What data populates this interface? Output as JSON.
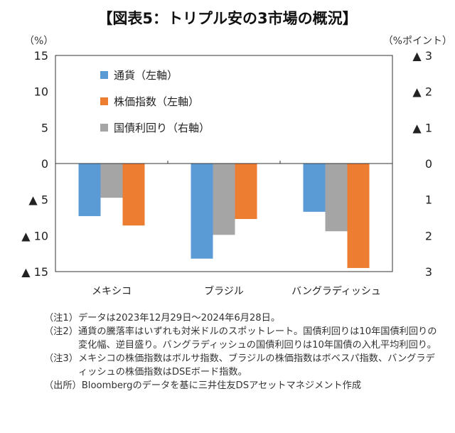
{
  "chart_data": {
    "type": "bar",
    "title": "【図表5：トリプル安の3市場の概況】",
    "left_axis_unit": "（%）",
    "right_axis_unit": "（%ポイント）",
    "left_ticks": [
      {
        "value": 15,
        "label": "15"
      },
      {
        "value": 10,
        "label": "10"
      },
      {
        "value": 5,
        "label": "5"
      },
      {
        "value": 0,
        "label": "0"
      },
      {
        "value": -5,
        "label": "▲ 5"
      },
      {
        "value": -10,
        "label": "▲ 10"
      },
      {
        "value": -15,
        "label": "▲ 15"
      }
    ],
    "right_ticks": [
      {
        "value": -3,
        "label": "▲ 3"
      },
      {
        "value": -2,
        "label": "▲ 2"
      },
      {
        "value": -1,
        "label": "▲ 1"
      },
      {
        "value": 0,
        "label": "0"
      },
      {
        "value": 1,
        "label": "1"
      },
      {
        "value": 2,
        "label": "2"
      },
      {
        "value": 3,
        "label": "3"
      }
    ],
    "ylim_left": [
      -15,
      15
    ],
    "ylim_right_inverted": [
      -3,
      3
    ],
    "grid": false,
    "legend_position": "top-left",
    "categories": [
      "メキシコ",
      "ブラジル",
      "バングラディッシュ"
    ],
    "series": [
      {
        "name": "通貨（左軸）",
        "axis": "left",
        "color": "#5b9bd5",
        "values": [
          -7.3,
          -13.2,
          -6.7
        ]
      },
      {
        "name": "国債利回り（右軸）",
        "axis": "right",
        "color": "#a5a5a5",
        "values": [
          0.95,
          1.98,
          1.88
        ]
      },
      {
        "name": "株価指数（左軸）",
        "axis": "left",
        "color": "#ed7d31",
        "values": [
          -8.6,
          -7.7,
          -14.5
        ]
      }
    ],
    "legend_order": [
      0,
      2,
      1
    ]
  },
  "notes": [
    {
      "tag": "（注1）",
      "text": "データは2023年12月29日～2024年6月28日。"
    },
    {
      "tag": "（注2）",
      "text": "通貨の騰落率はいずれも対米ドルのスポットレート。国債利回りは10年国債利回りの変化幅、逆目盛り。バングラディッシュの国債利回りは10年国債の入札平均利回り。"
    },
    {
      "tag": "（注3）",
      "text": "メキシコの株価指数はボルサ指数、ブラジルの株価指数はボベスパ指数、バングラディッシュの株価指数はDSEボード指数。"
    },
    {
      "tag": "（出所）",
      "text": "Bloombergのデータを基に三井住友DSアセットマネジメント作成"
    }
  ]
}
